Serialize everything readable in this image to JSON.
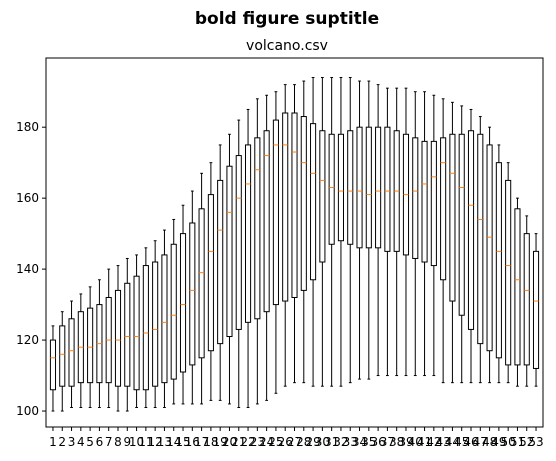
{
  "figure": {
    "suptitle": "bold figure suptitle",
    "title": "volcano.csv"
  },
  "chart_data": {
    "type": "boxplot",
    "xlabel": "",
    "ylabel": "",
    "ylim": [
      95.5,
      199.5
    ],
    "yticks": [
      100,
      120,
      140,
      160,
      180
    ],
    "categories": [
      "1",
      "2",
      "3",
      "4",
      "5",
      "6",
      "7",
      "8",
      "9",
      "10",
      "11",
      "12",
      "13",
      "14",
      "15",
      "16",
      "17",
      "18",
      "19",
      "20",
      "21",
      "22",
      "23",
      "24",
      "25",
      "26",
      "27",
      "28",
      "29",
      "30",
      "31",
      "32",
      "33",
      "34",
      "35",
      "36",
      "37",
      "38",
      "39",
      "40",
      "41",
      "42",
      "43",
      "44",
      "45",
      "46",
      "47",
      "48",
      "49",
      "50",
      "51",
      "52",
      "53"
    ],
    "whisker_low": [
      100,
      100,
      101,
      101,
      101,
      101,
      101,
      100,
      100,
      101,
      101,
      101,
      101,
      102,
      102,
      102,
      102,
      103,
      103,
      102,
      101,
      101,
      102,
      103,
      105,
      107,
      108,
      108,
      107,
      107,
      107,
      107,
      108,
      109,
      109,
      110,
      110,
      110,
      110,
      110,
      110,
      110,
      108,
      108,
      108,
      108,
      108,
      108,
      108,
      108,
      107,
      107,
      107
    ],
    "q1": [
      106,
      107,
      107,
      108,
      108,
      108,
      108,
      107,
      107,
      106,
      106,
      107,
      108,
      109,
      111,
      113,
      115,
      117,
      119,
      121,
      123,
      125,
      126,
      128,
      130,
      131,
      132,
      134,
      137,
      142,
      147,
      148,
      147,
      146,
      146,
      146,
      145,
      145,
      144,
      143,
      142,
      141,
      137,
      131,
      127,
      123,
      119,
      117,
      115,
      113,
      113,
      113,
      112
    ],
    "median": [
      115,
      116,
      117,
      118,
      118,
      119,
      120,
      120,
      121,
      121,
      122,
      123,
      125,
      127,
      130,
      134,
      139,
      145,
      151,
      156,
      160,
      164,
      168,
      172,
      175,
      175,
      173,
      170,
      167,
      165,
      163,
      162,
      162,
      162,
      161,
      162,
      162,
      162,
      161,
      162,
      164,
      166,
      170,
      167,
      163,
      158,
      154,
      149,
      145,
      141,
      137,
      134,
      131
    ],
    "q3": [
      120,
      124,
      126,
      128,
      129,
      130,
      132,
      134,
      136,
      138,
      141,
      142,
      144,
      147,
      150,
      153,
      157,
      161,
      165,
      169,
      172,
      175,
      177,
      179,
      182,
      184,
      184,
      183,
      181,
      179,
      178,
      178,
      179,
      180,
      180,
      180,
      180,
      179,
      178,
      177,
      176,
      176,
      177,
      178,
      178,
      179,
      178,
      175,
      170,
      165,
      157,
      150,
      145
    ],
    "whisker_high": [
      124,
      128,
      131,
      133,
      135,
      137,
      140,
      141,
      143,
      144,
      146,
      148,
      151,
      154,
      158,
      162,
      167,
      170,
      175,
      178,
      182,
      185,
      188,
      189,
      190,
      192,
      192,
      193,
      194,
      194,
      194,
      194,
      194,
      193,
      193,
      192,
      191,
      191,
      191,
      190,
      190,
      189,
      188,
      187,
      186,
      185,
      183,
      180,
      175,
      170,
      160,
      155,
      150
    ]
  },
  "style": {
    "box_color": "#000000",
    "median_color": "#ff7f0e"
  }
}
